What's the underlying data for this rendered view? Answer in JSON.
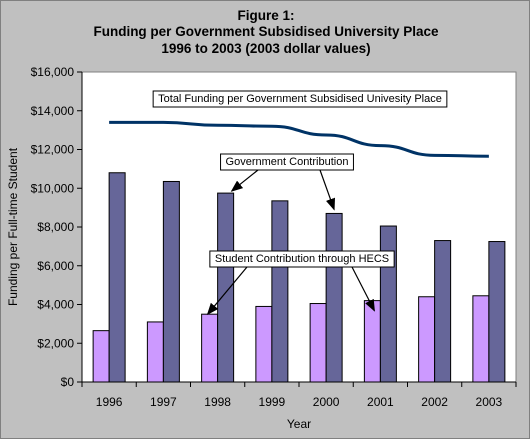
{
  "title": {
    "line1": "Figure 1:",
    "line2": "Funding per Government Subsidised University Place",
    "line3": "1996 to 2003 (2003 dollar values)"
  },
  "chart_data": {
    "type": "bar",
    "categories": [
      "1996",
      "1997",
      "1998",
      "1999",
      "2000",
      "2001",
      "2002",
      "2003"
    ],
    "series": [
      {
        "name": "Student Contribution through HECS",
        "type": "bar",
        "color": "#cc99ff",
        "values": [
          2650,
          3100,
          3500,
          3900,
          4050,
          4200,
          4400,
          4450
        ]
      },
      {
        "name": "Government Contribution",
        "type": "bar",
        "color": "#666699",
        "values": [
          10800,
          10350,
          9750,
          9350,
          8700,
          8050,
          7300,
          7250
        ]
      },
      {
        "name": "Total Funding per Government Subsidised Univesity Place",
        "type": "line",
        "color": "#003366",
        "values": [
          13400,
          13400,
          13250,
          13200,
          12750,
          12200,
          11700,
          11650
        ]
      }
    ],
    "xlabel": "Year",
    "ylabel": "Funding per Full-time Student",
    "ylim": [
      0,
      16000
    ],
    "yticks": [
      0,
      2000,
      4000,
      6000,
      8000,
      10000,
      12000,
      14000,
      16000
    ],
    "ytick_labels": [
      "$0",
      "$2,000",
      "$4,000",
      "$6,000",
      "$8,000",
      "$10,000",
      "$12,000",
      "$14,000",
      "$16,000"
    ],
    "grid": false,
    "plot_background": "#ffffff",
    "annotations": [
      {
        "text": "Total Funding per Government Subsidised Univesity Place",
        "arrow": false
      },
      {
        "text": "Government Contribution",
        "arrow": true
      },
      {
        "text": "Student Contribution through HECS",
        "arrow": true
      }
    ]
  }
}
